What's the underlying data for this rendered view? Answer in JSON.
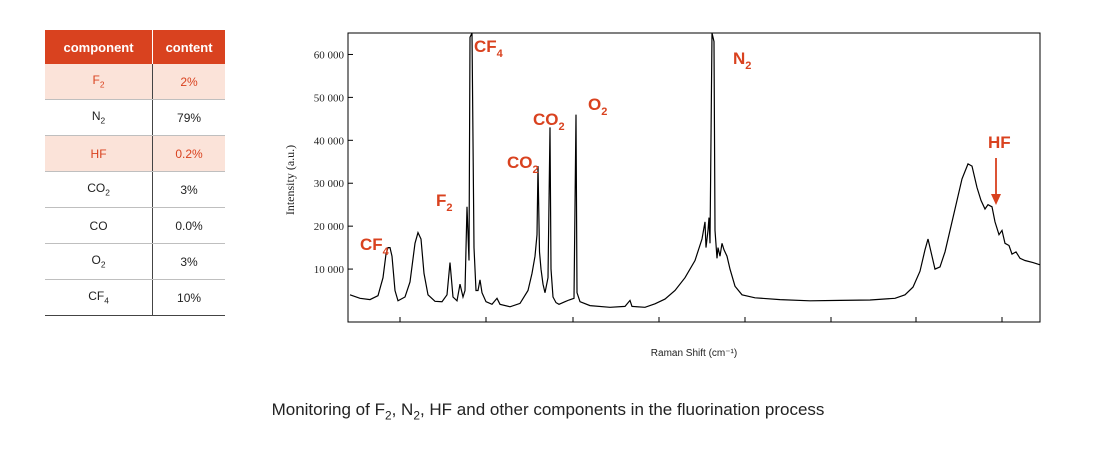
{
  "table": {
    "headers": [
      "component",
      "content"
    ],
    "rows": [
      {
        "component": "F",
        "sub": "2",
        "content": "2%",
        "highlight": true
      },
      {
        "component": "N",
        "sub": "2",
        "content": "79%",
        "highlight": false
      },
      {
        "component": "HF",
        "sub": "",
        "content": "0.2%",
        "highlight": true
      },
      {
        "component": "CO",
        "sub": "2",
        "content": "3%",
        "highlight": false
      },
      {
        "component": "CO",
        "sub": "",
        "content": "0.0%",
        "highlight": false
      },
      {
        "component": "O",
        "sub": "2",
        "content": "3%",
        "highlight": false
      },
      {
        "component": "CF",
        "sub": "4",
        "content": "10%",
        "highlight": false
      }
    ]
  },
  "chart_data": {
    "type": "line",
    "xlabel": "Raman Shift (cm⁻¹)",
    "ylabel": "Intensity (a.u.)",
    "ylim": [
      0,
      65000
    ],
    "yticks": [
      10000,
      20000,
      30000,
      40000,
      50000,
      60000
    ],
    "ytick_labels": [
      "10 000",
      "20 000",
      "30 000",
      "40 000",
      "50 000",
      "60 000"
    ],
    "grid": false,
    "peak_labels": [
      {
        "name": "CF",
        "sub": "4"
      },
      {
        "name": "F",
        "sub": "2"
      },
      {
        "name": "CF",
        "sub": "4"
      },
      {
        "name": "CO",
        "sub": "2"
      },
      {
        "name": "CO",
        "sub": "2"
      },
      {
        "name": "O",
        "sub": "2"
      },
      {
        "name": "N",
        "sub": "2"
      },
      {
        "name": "HF",
        "sub": ""
      }
    ],
    "series": [
      {
        "color": "#000000",
        "points": [
          [
            0,
            4000
          ],
          [
            10,
            3200
          ],
          [
            20,
            2900
          ],
          [
            28,
            3800
          ],
          [
            33,
            8000
          ],
          [
            36,
            13500
          ],
          [
            38,
            15000
          ],
          [
            40,
            15000
          ],
          [
            42,
            13000
          ],
          [
            45,
            5000
          ],
          [
            48,
            2600
          ],
          [
            55,
            3500
          ],
          [
            60,
            7000
          ],
          [
            65,
            16000
          ],
          [
            68,
            18500
          ],
          [
            71,
            17000
          ],
          [
            74,
            9000
          ],
          [
            78,
            4000
          ],
          [
            85,
            2500
          ],
          [
            92,
            2400
          ],
          [
            97,
            4000
          ],
          [
            100,
            11500
          ],
          [
            103,
            3500
          ],
          [
            107,
            2600
          ],
          [
            110,
            6500
          ],
          [
            113,
            3500
          ],
          [
            115,
            5000
          ],
          [
            117,
            24500
          ],
          [
            119,
            12000
          ],
          [
            120,
            64000
          ],
          [
            122,
            65000
          ],
          [
            124,
            15000
          ],
          [
            126,
            5000
          ],
          [
            128,
            5000
          ],
          [
            130,
            7500
          ],
          [
            132,
            4500
          ],
          [
            136,
            2400
          ],
          [
            142,
            1800
          ],
          [
            147,
            3200
          ],
          [
            150,
            1800
          ],
          [
            160,
            1200
          ],
          [
            170,
            2000
          ],
          [
            178,
            5000
          ],
          [
            182,
            9000
          ],
          [
            185,
            13000
          ],
          [
            187,
            18000
          ],
          [
            188,
            34000
          ],
          [
            189.5,
            14000
          ],
          [
            191,
            10000
          ],
          [
            193,
            6500
          ],
          [
            195,
            4500
          ],
          [
            198,
            8000
          ],
          [
            200,
            43000
          ],
          [
            201,
            10000
          ],
          [
            203,
            3500
          ],
          [
            206,
            2200
          ],
          [
            209,
            1800
          ],
          [
            215,
            2400
          ],
          [
            219,
            2800
          ],
          [
            224,
            3200
          ],
          [
            226,
            46000
          ],
          [
            227,
            4500
          ],
          [
            230,
            2400
          ],
          [
            240,
            1500
          ],
          [
            260,
            1100
          ],
          [
            275,
            1300
          ],
          [
            280,
            2700
          ],
          [
            282,
            1300
          ],
          [
            295,
            1100
          ],
          [
            305,
            1900
          ],
          [
            315,
            3000
          ],
          [
            325,
            5000
          ],
          [
            335,
            8000
          ],
          [
            345,
            12000
          ],
          [
            352,
            17000
          ],
          [
            355,
            21000
          ],
          [
            356,
            15000
          ],
          [
            358,
            19000
          ],
          [
            359,
            22000
          ],
          [
            360,
            16000
          ],
          [
            362,
            65000
          ],
          [
            364,
            63000
          ],
          [
            365,
            19000
          ],
          [
            367,
            12500
          ],
          [
            368,
            15000
          ],
          [
            370,
            13000
          ],
          [
            372,
            16000
          ],
          [
            374,
            14500
          ],
          [
            377,
            13000
          ],
          [
            380,
            10000
          ],
          [
            385,
            6000
          ],
          [
            392,
            4000
          ],
          [
            405,
            3300
          ],
          [
            430,
            2900
          ],
          [
            460,
            2600
          ],
          [
            490,
            2700
          ],
          [
            520,
            2800
          ],
          [
            545,
            3200
          ],
          [
            555,
            4000
          ],
          [
            563,
            5800
          ],
          [
            570,
            9500
          ],
          [
            575,
            14500
          ],
          [
            578,
            17000
          ],
          [
            581,
            14000
          ],
          [
            585,
            10000
          ],
          [
            590,
            10500
          ],
          [
            595,
            14000
          ],
          [
            605,
            24000
          ],
          [
            612,
            31000
          ],
          [
            618,
            34500
          ],
          [
            622,
            34000
          ],
          [
            627,
            29000
          ],
          [
            631,
            26000
          ],
          [
            635,
            24000
          ],
          [
            638,
            25000
          ],
          [
            642,
            24500
          ],
          [
            645,
            21000
          ],
          [
            649,
            18000
          ],
          [
            652,
            19000
          ],
          [
            655,
            16000
          ],
          [
            659,
            15500
          ],
          [
            662,
            13500
          ],
          [
            666,
            14000
          ],
          [
            670,
            12500
          ],
          [
            675,
            12000
          ],
          [
            683,
            11500
          ],
          [
            690,
            11000
          ]
        ]
      }
    ]
  },
  "caption": {
    "prefix": "Monitoring of F",
    "s1": "2",
    "mid": ", N",
    "s2": "2",
    "suffix": ", HF and other components in the fluorination process"
  }
}
